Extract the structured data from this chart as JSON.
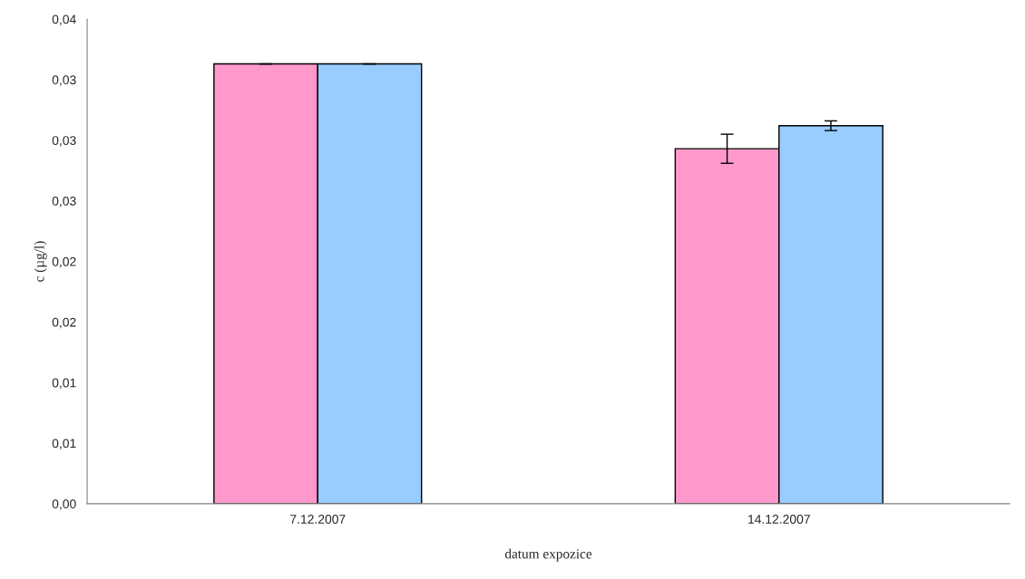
{
  "chart_data": {
    "type": "bar",
    "xlabel": "datum expozice",
    "ylabel": "c (µg/l)",
    "categories": [
      "7.12.2007",
      "14.12.2007"
    ],
    "series": [
      {
        "color": "#ff99cc",
        "values": [
          0.0363,
          0.0293
        ],
        "errors": [
          0,
          0.0012
        ]
      },
      {
        "color": "#99ccff",
        "values": [
          0.0363,
          0.0312
        ],
        "errors": [
          0,
          0.0004
        ]
      }
    ],
    "ylim": [
      0,
      0.04
    ],
    "yticks": [
      {
        "value": 0,
        "label": "0,00"
      },
      {
        "value": 0.005,
        "label": "0,01"
      },
      {
        "value": 0.01,
        "label": "0,01"
      },
      {
        "value": 0.015,
        "label": "0,02"
      },
      {
        "value": 0.02,
        "label": "0,02"
      },
      {
        "value": 0.025,
        "label": "0,03"
      },
      {
        "value": 0.03,
        "label": "0,03"
      },
      {
        "value": 0.035,
        "label": "0,03"
      },
      {
        "value": 0.04,
        "label": "0,04"
      }
    ],
    "grid": false
  }
}
